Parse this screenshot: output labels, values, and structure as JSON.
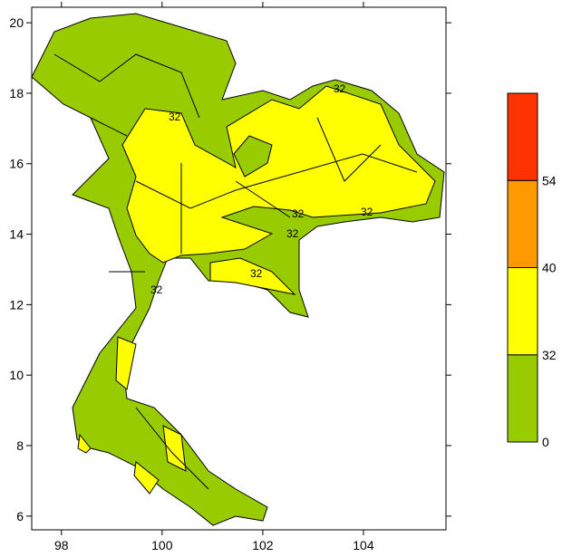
{
  "map": {
    "xlim": [
      97.41,
      105.64
    ],
    "ylim": [
      5.61,
      20.44
    ],
    "xticks": [
      98,
      100,
      102,
      104
    ],
    "yticks": [
      6,
      8,
      10,
      12,
      14,
      16,
      18,
      20
    ],
    "contour_labels": [
      "32",
      "32",
      "32",
      "32",
      "32",
      "32",
      "32"
    ]
  },
  "colorbar": {
    "levels": [
      0,
      32,
      40,
      54
    ],
    "colors": [
      "#99cc00",
      "#ffff00",
      "#ff9900",
      "#ff3300"
    ]
  }
}
